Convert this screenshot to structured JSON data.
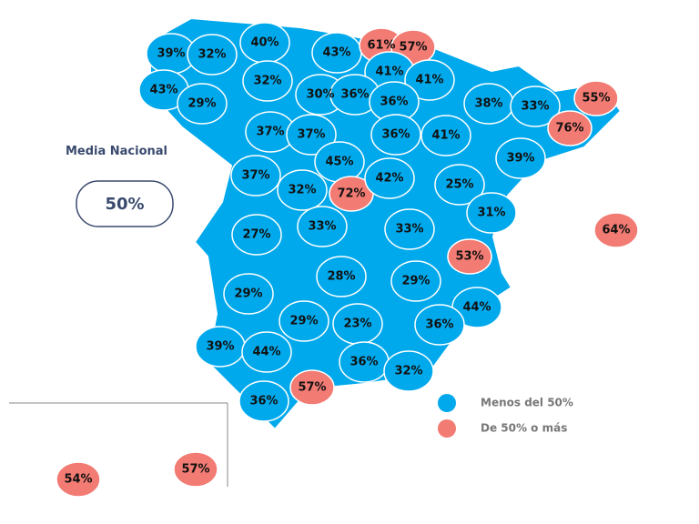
{
  "header": {
    "title": "Media Nacional",
    "average": "50%"
  },
  "legend": [
    {
      "label": "Menos del 50%",
      "color": "#00a9ec"
    },
    {
      "label": "De 50% o más",
      "color": "#f27b73"
    }
  ],
  "regions": [
    {
      "label": "39%",
      "group": 0
    },
    {
      "label": "32%",
      "group": 0
    },
    {
      "label": "40%",
      "group": 0
    },
    {
      "label": "43%",
      "group": 0
    },
    {
      "label": "61%",
      "group": 1
    },
    {
      "label": "57%",
      "group": 1
    },
    {
      "label": "43%",
      "group": 0
    },
    {
      "label": "29%",
      "group": 0
    },
    {
      "label": "32%",
      "group": 0
    },
    {
      "label": "41%",
      "group": 0
    },
    {
      "label": "41%",
      "group": 0
    },
    {
      "label": "30%",
      "group": 0
    },
    {
      "label": "36%",
      "group": 0
    },
    {
      "label": "36%",
      "group": 0
    },
    {
      "label": "38%",
      "group": 0
    },
    {
      "label": "33%",
      "group": 0
    },
    {
      "label": "55%",
      "group": 1
    },
    {
      "label": "37%",
      "group": 0
    },
    {
      "label": "37%",
      "group": 0
    },
    {
      "label": "36%",
      "group": 0
    },
    {
      "label": "41%",
      "group": 0
    },
    {
      "label": "76%",
      "group": 1
    },
    {
      "label": "39%",
      "group": 0
    },
    {
      "label": "45%",
      "group": 0
    },
    {
      "label": "37%",
      "group": 0
    },
    {
      "label": "32%",
      "group": 0
    },
    {
      "label": "72%",
      "group": 1
    },
    {
      "label": "42%",
      "group": 0
    },
    {
      "label": "25%",
      "group": 0
    },
    {
      "label": "31%",
      "group": 0
    },
    {
      "label": "64%",
      "group": 1
    },
    {
      "label": "27%",
      "group": 0
    },
    {
      "label": "33%",
      "group": 0
    },
    {
      "label": "33%",
      "group": 0
    },
    {
      "label": "53%",
      "group": 1
    },
    {
      "label": "28%",
      "group": 0
    },
    {
      "label": "29%",
      "group": 0
    },
    {
      "label": "29%",
      "group": 0
    },
    {
      "label": "44%",
      "group": 0
    },
    {
      "label": "29%",
      "group": 0
    },
    {
      "label": "23%",
      "group": 0
    },
    {
      "label": "36%",
      "group": 0
    },
    {
      "label": "39%",
      "group": 0
    },
    {
      "label": "44%",
      "group": 0
    },
    {
      "label": "36%",
      "group": 0
    },
    {
      "label": "32%",
      "group": 0
    },
    {
      "label": "36%",
      "group": 0
    },
    {
      "label": "57%",
      "group": 1
    },
    {
      "label": "54%",
      "group": 1
    },
    {
      "label": "57%",
      "group": 1
    }
  ]
}
